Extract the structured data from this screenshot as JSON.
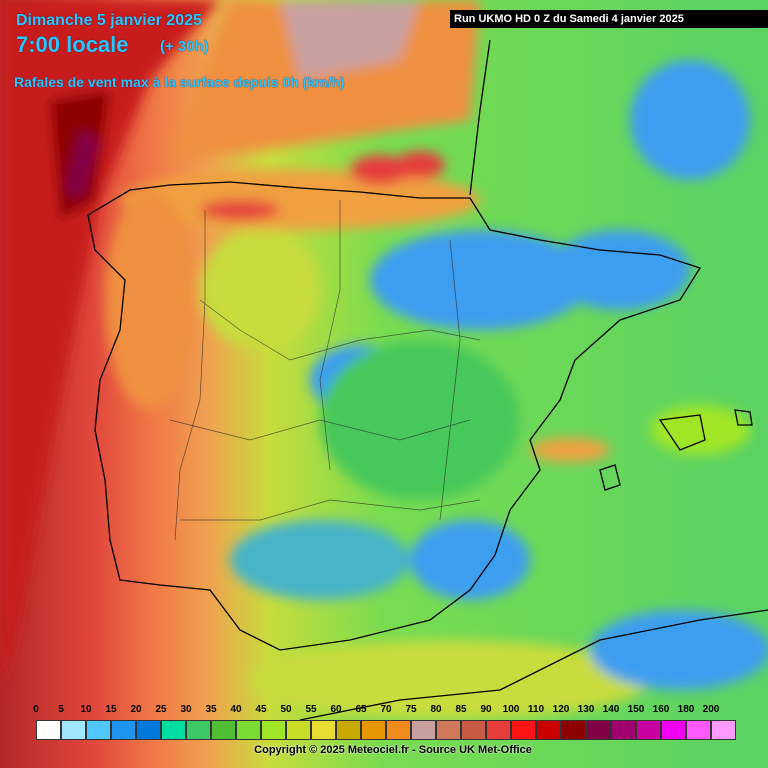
{
  "header": {
    "date": "Dimanche 5 janvier 2025",
    "time": "7:00 locale",
    "offset": "(+ 30h)",
    "parameter": "Rafales de vent max à la surface depuis 0h (km/h)",
    "run": "Run UKMO HD 0 Z du Samedi 4 janvier 2025"
  },
  "legend": {
    "labels": [
      0,
      5,
      10,
      15,
      20,
      25,
      30,
      35,
      40,
      45,
      50,
      55,
      60,
      65,
      70,
      75,
      80,
      85,
      90,
      100,
      110,
      120,
      130,
      140,
      150,
      160,
      180,
      200
    ],
    "colors": [
      "#ffffff",
      "#a0e6ff",
      "#50c8ff",
      "#1e96f0",
      "#0078dc",
      "#00dca0",
      "#3cc864",
      "#50be32",
      "#78dc32",
      "#a0e628",
      "#c8dc28",
      "#e6dc32",
      "#c8aa00",
      "#e69600",
      "#f08c1e",
      "#c8a0a0",
      "#d0785a",
      "#c85a46",
      "#e63c3c",
      "#ff1414",
      "#c80000",
      "#8c0000",
      "#820046",
      "#a0006e",
      "#c800a0",
      "#f000f0",
      "#ff5aff",
      "#ff9bff"
    ]
  },
  "footer": {
    "copyright": "Copyright © 2025 Meteociel.fr - Source UK Met-Office"
  }
}
